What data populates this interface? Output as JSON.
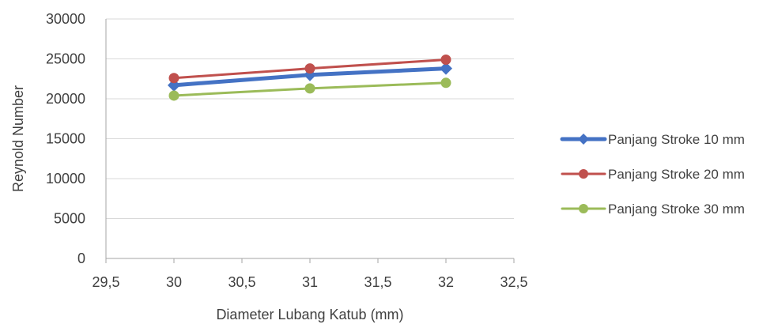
{
  "chart_data": {
    "type": "line",
    "title": "",
    "xlabel": "Diameter Lubang Katub (mm)",
    "ylabel": "Reynold Number",
    "xlim": [
      29.5,
      32.5
    ],
    "ylim": [
      0,
      30000
    ],
    "x_ticks": [
      29.5,
      30,
      30.5,
      31,
      31.5,
      32,
      32.5
    ],
    "x_tick_labels": [
      "29,5",
      "30",
      "30,5",
      "31",
      "31,5",
      "32",
      "32,5"
    ],
    "y_ticks": [
      0,
      5000,
      10000,
      15000,
      20000,
      25000,
      30000
    ],
    "y_tick_labels": [
      "0",
      "5000",
      "10000",
      "15000",
      "20000",
      "25000",
      "30000"
    ],
    "grid": "horizontal",
    "legend_position": "right",
    "x": [
      30,
      31,
      32
    ],
    "series": [
      {
        "name": "Panjang Stroke 10 mm",
        "values": [
          21700,
          23000,
          23800
        ],
        "color": "#4472C4",
        "marker": "diamond"
      },
      {
        "name": "Panjang Stroke 20 mm",
        "values": [
          22600,
          23800,
          24900
        ],
        "color": "#C0504D",
        "marker": "circle"
      },
      {
        "name": "Panjang Stroke 30 mm",
        "values": [
          20400,
          21300,
          22000
        ],
        "color": "#9BBB59",
        "marker": "circle"
      }
    ]
  }
}
